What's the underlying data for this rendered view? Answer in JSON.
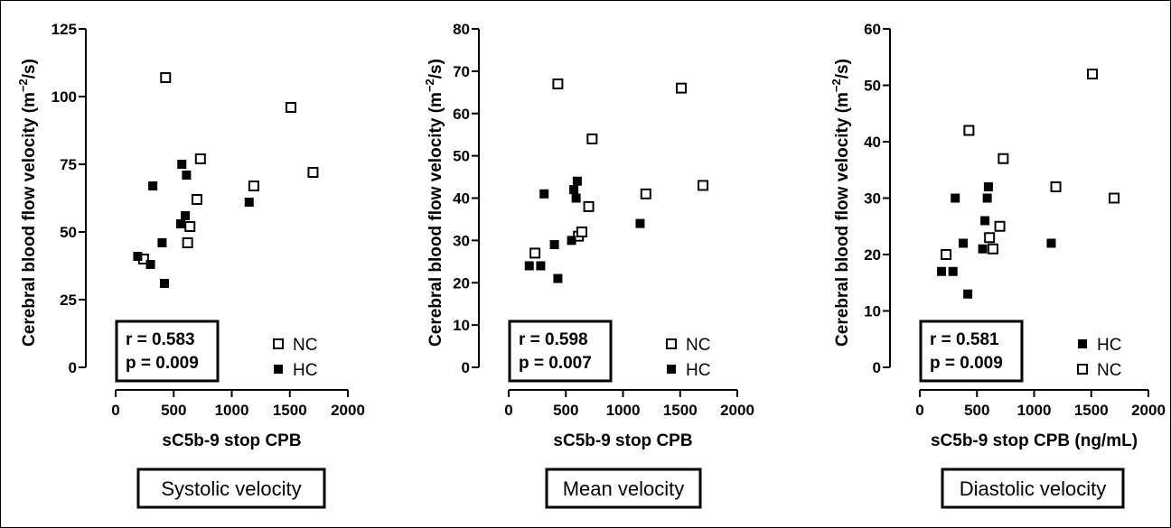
{
  "chart_data": [
    {
      "type": "scatter",
      "caption": "Systolic velocity",
      "xlabel": "sC5b-9 stop CPB",
      "ylabel": "Cerebral blood flow velocity (m",
      "ylabel_sup": "−2",
      "ylabel_tail": "/s)",
      "xlim": [
        0,
        2000
      ],
      "ylim": [
        0,
        125
      ],
      "xticks": [
        "0",
        "500",
        "1000",
        "1500",
        "2000"
      ],
      "yticks": [
        "0",
        "25",
        "50",
        "75",
        "100",
        "125"
      ],
      "stats": [
        "r = 0.583",
        "p = 0.009"
      ],
      "legend": [
        "NC",
        "HC"
      ],
      "series": [
        {
          "name": "NC",
          "marker": "open-square",
          "x": [
            240,
            430,
            620,
            640,
            700,
            730,
            1190,
            1510,
            1700
          ],
          "y": [
            40,
            107,
            46,
            52,
            62,
            77,
            67,
            96,
            72
          ]
        },
        {
          "name": "HC",
          "marker": "filled-square",
          "x": [
            190,
            300,
            320,
            400,
            420,
            560,
            570,
            600,
            610,
            1150
          ],
          "y": [
            41,
            38,
            67,
            46,
            31,
            53,
            75,
            56,
            71,
            61
          ]
        }
      ]
    },
    {
      "type": "scatter",
      "caption": "Mean velocity",
      "xlabel": "sC5b-9 stop CPB",
      "ylabel": "Cerebral blood flow velocity (m",
      "ylabel_sup": "−2",
      "ylabel_tail": "/s)",
      "xlim": [
        0,
        2000
      ],
      "ylim": [
        0,
        80
      ],
      "xticks": [
        "0",
        "500",
        "1000",
        "1500",
        "2000"
      ],
      "yticks": [
        "0",
        "10",
        "20",
        "30",
        "40",
        "50",
        "60",
        "70",
        "80"
      ],
      "stats": [
        "r = 0.598",
        "p = 0.007"
      ],
      "legend": [
        "NC",
        "HC"
      ],
      "series": [
        {
          "name": "NC",
          "marker": "open-square",
          "x": [
            230,
            430,
            610,
            640,
            700,
            730,
            1200,
            1510,
            1700
          ],
          "y": [
            27,
            67,
            31,
            32,
            38,
            54,
            41,
            66,
            43
          ],
          "legend_name": "NC"
        },
        {
          "name": "HC",
          "marker": "filled-square",
          "x": [
            180,
            280,
            310,
            400,
            430,
            550,
            570,
            590,
            600,
            1150
          ],
          "y": [
            24,
            24,
            41,
            29,
            21,
            30,
            42,
            40,
            44,
            34
          ]
        }
      ]
    },
    {
      "type": "scatter",
      "caption": "Diastolic velocity",
      "xlabel": "sC5b-9 stop CPB (ng/mL)",
      "ylabel": "Cerebral blood flow velocity (m",
      "ylabel_sup": "−2",
      "ylabel_tail": "/s)",
      "xlim": [
        0,
        2000
      ],
      "ylim": [
        0,
        60
      ],
      "xticks": [
        "0",
        "500",
        "1000",
        "1500",
        "2000"
      ],
      "yticks": [
        "0",
        "10",
        "20",
        "30",
        "40",
        "50",
        "60"
      ],
      "stats": [
        "r = 0.581",
        "p = 0.009"
      ],
      "legend": [
        "HC",
        "NC"
      ],
      "series": [
        {
          "name": "HC",
          "marker": "filled-square",
          "x": [
            190,
            290,
            310,
            380,
            420,
            550,
            570,
            590,
            600,
            1150
          ],
          "y": [
            17,
            17,
            30,
            22,
            13,
            21,
            26,
            30,
            32,
            22
          ]
        },
        {
          "name": "NC",
          "marker": "open-square",
          "x": [
            230,
            430,
            610,
            640,
            700,
            730,
            1190,
            1510,
            1700
          ],
          "y": [
            20,
            42,
            23,
            21,
            25,
            37,
            32,
            52,
            30
          ]
        }
      ]
    }
  ]
}
